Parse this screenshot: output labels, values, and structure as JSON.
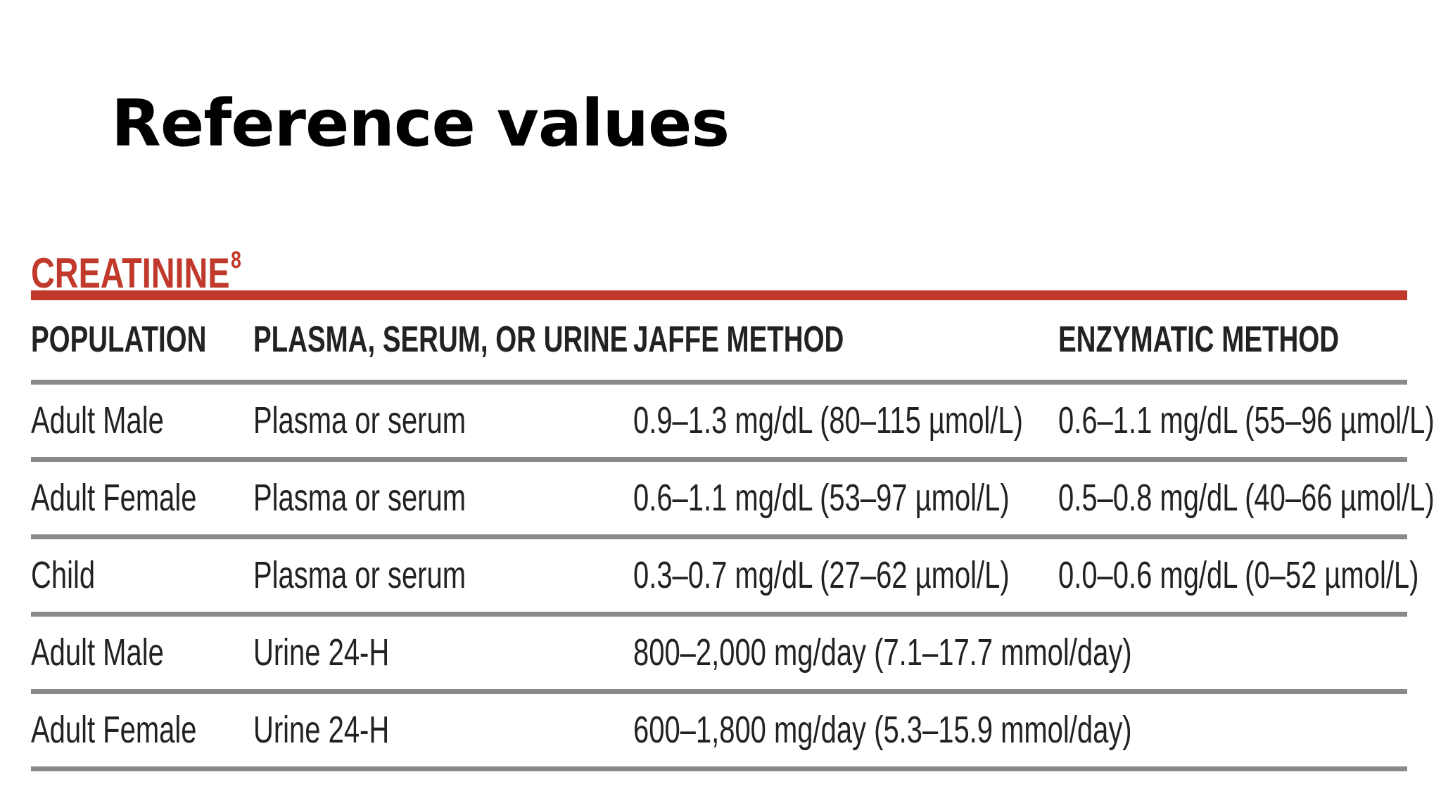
{
  "title": "Reference values",
  "section": {
    "heading": "CREATININE",
    "footnote": "8",
    "accent_color": "#c0392b"
  },
  "table": {
    "headers": [
      "POPULATION",
      "PLASMA, SERUM, OR URINE",
      "JAFFE METHOD",
      "ENZYMATIC METHOD"
    ],
    "rows": [
      {
        "population": "Adult Male",
        "specimen": "Plasma or serum",
        "jaffe": "0.9–1.3 mg/dL (80–115 µmol/L)",
        "enzymatic": "0.6–1.1 mg/dL (55–96 µmol/L)"
      },
      {
        "population": "Adult Female",
        "specimen": "Plasma or serum",
        "jaffe": "0.6–1.1 mg/dL (53–97 µmol/L)",
        "enzymatic": "0.5–0.8 mg/dL (40–66 µmol/L)"
      },
      {
        "population": "Child",
        "specimen": "Plasma or serum",
        "jaffe": "0.3–0.7 mg/dL (27–62 µmol/L)",
        "enzymatic": "0.0–0.6 mg/dL (0–52 µmol/L)"
      },
      {
        "population": "Adult Male",
        "specimen": "Urine 24-H",
        "jaffe": "800–2,000 mg/day (7.1–17.7 mmol/day)",
        "enzymatic": ""
      },
      {
        "population": "Adult Female",
        "specimen": "Urine 24-H",
        "jaffe": "600–1,800 mg/day (5.3–15.9 mmol/day)",
        "enzymatic": ""
      }
    ]
  }
}
